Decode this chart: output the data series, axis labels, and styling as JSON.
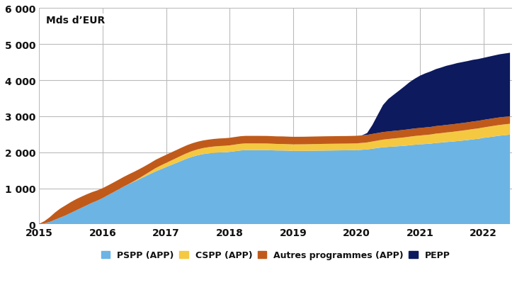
{
  "title_text": "Mds d’EUR",
  "colors": {
    "PSPP": "#6cb4e4",
    "CSPP": "#f5c842",
    "Autres": "#c05a1a",
    "PEPP": "#0d1a5e"
  },
  "legend_labels": [
    "PSPP (APP)",
    "CSPP (APP)",
    "Autres programmes (APP)",
    "PEPP"
  ],
  "ylim": [
    0,
    6000
  ],
  "yticks": [
    0,
    1000,
    2000,
    3000,
    4000,
    5000,
    6000
  ],
  "ytick_labels": [
    "0",
    "1 000",
    "2 000",
    "3 000",
    "4 000",
    "5 000",
    "6 000"
  ],
  "xtick_labels": [
    "2015",
    "2016",
    "2017",
    "2018",
    "2019",
    "2020",
    "2021",
    "2022"
  ],
  "background_color": "#ffffff",
  "grid_color": "#bbbbbb",
  "x": [
    2015.0,
    2015.083,
    2015.167,
    2015.25,
    2015.333,
    2015.417,
    2015.5,
    2015.583,
    2015.667,
    2015.75,
    2015.833,
    2015.917,
    2016.0,
    2016.083,
    2016.167,
    2016.25,
    2016.333,
    2016.417,
    2016.5,
    2016.583,
    2016.667,
    2016.75,
    2016.833,
    2016.917,
    2017.0,
    2017.083,
    2017.167,
    2017.25,
    2017.333,
    2017.417,
    2017.5,
    2017.583,
    2017.667,
    2017.75,
    2017.833,
    2017.917,
    2018.0,
    2018.083,
    2018.167,
    2018.25,
    2018.333,
    2018.417,
    2018.5,
    2018.583,
    2018.667,
    2018.75,
    2018.833,
    2018.917,
    2019.0,
    2019.083,
    2019.167,
    2019.25,
    2019.333,
    2019.417,
    2019.5,
    2019.583,
    2019.667,
    2019.75,
    2019.833,
    2019.917,
    2020.0,
    2020.083,
    2020.167,
    2020.25,
    2020.333,
    2020.417,
    2020.5,
    2020.583,
    2020.667,
    2020.75,
    2020.833,
    2020.917,
    2021.0,
    2021.083,
    2021.167,
    2021.25,
    2021.333,
    2021.417,
    2021.5,
    2021.583,
    2021.667,
    2021.75,
    2021.833,
    2021.917,
    2022.0,
    2022.083,
    2022.167,
    2022.25,
    2022.333,
    2022.417
  ],
  "PSPP": [
    5,
    30,
    70,
    130,
    190,
    250,
    320,
    390,
    460,
    530,
    600,
    660,
    730,
    810,
    890,
    970,
    1050,
    1120,
    1190,
    1260,
    1330,
    1400,
    1470,
    1530,
    1590,
    1650,
    1710,
    1770,
    1830,
    1880,
    1920,
    1950,
    1970,
    1985,
    1995,
    2000,
    2010,
    2030,
    2050,
    2060,
    2060,
    2060,
    2060,
    2060,
    2055,
    2050,
    2050,
    2045,
    2040,
    2040,
    2040,
    2042,
    2044,
    2046,
    2048,
    2050,
    2052,
    2054,
    2055,
    2058,
    2060,
    2070,
    2080,
    2100,
    2120,
    2140,
    2150,
    2160,
    2170,
    2180,
    2195,
    2210,
    2220,
    2230,
    2240,
    2260,
    2270,
    2285,
    2295,
    2310,
    2325,
    2340,
    2360,
    2375,
    2400,
    2420,
    2440,
    2460,
    2475,
    2490
  ],
  "CSPP": [
    0,
    0,
    0,
    0,
    0,
    0,
    0,
    0,
    0,
    0,
    0,
    0,
    0,
    0,
    0,
    0,
    0,
    5,
    15,
    30,
    50,
    70,
    90,
    105,
    115,
    125,
    135,
    145,
    152,
    158,
    163,
    168,
    172,
    175,
    178,
    180,
    182,
    184,
    185,
    186,
    186,
    186,
    185,
    184,
    183,
    182,
    181,
    180,
    180,
    181,
    182,
    183,
    184,
    185,
    186,
    186,
    186,
    186,
    186,
    186,
    188,
    190,
    194,
    200,
    206,
    212,
    218,
    224,
    228,
    233,
    238,
    242,
    246,
    250,
    254,
    258,
    262,
    266,
    270,
    274,
    278,
    282,
    285,
    288,
    290,
    293,
    296,
    298,
    300,
    302
  ],
  "Autres": [
    10,
    60,
    130,
    200,
    250,
    280,
    300,
    310,
    310,
    305,
    295,
    285,
    275,
    270,
    268,
    268,
    268,
    268,
    258,
    248,
    238,
    232,
    230,
    228,
    226,
    224,
    222,
    220,
    218,
    215,
    213,
    211,
    210,
    210,
    210,
    210,
    210,
    210,
    210,
    210,
    210,
    210,
    210,
    210,
    210,
    210,
    210,
    210,
    210,
    210,
    210,
    210,
    210,
    210,
    210,
    210,
    210,
    210,
    210,
    210,
    210,
    210,
    210,
    210,
    210,
    210,
    210,
    210,
    210,
    210,
    210,
    210,
    210,
    210,
    210,
    210,
    210,
    210,
    210,
    210,
    210,
    210,
    210,
    210,
    210,
    210,
    210,
    210,
    210,
    210
  ],
  "PEPP": [
    0,
    0,
    0,
    0,
    0,
    0,
    0,
    0,
    0,
    0,
    0,
    0,
    0,
    0,
    0,
    0,
    0,
    0,
    0,
    0,
    0,
    0,
    0,
    0,
    0,
    0,
    0,
    0,
    0,
    0,
    0,
    0,
    0,
    0,
    0,
    0,
    0,
    0,
    0,
    0,
    0,
    0,
    0,
    0,
    0,
    0,
    0,
    0,
    0,
    0,
    0,
    0,
    0,
    0,
    0,
    0,
    0,
    0,
    0,
    0,
    0,
    0,
    50,
    250,
    500,
    750,
    900,
    1000,
    1100,
    1200,
    1300,
    1380,
    1450,
    1500,
    1540,
    1580,
    1610,
    1640,
    1660,
    1680,
    1690,
    1700,
    1710,
    1715,
    1720,
    1730,
    1740,
    1750,
    1755,
    1760
  ]
}
